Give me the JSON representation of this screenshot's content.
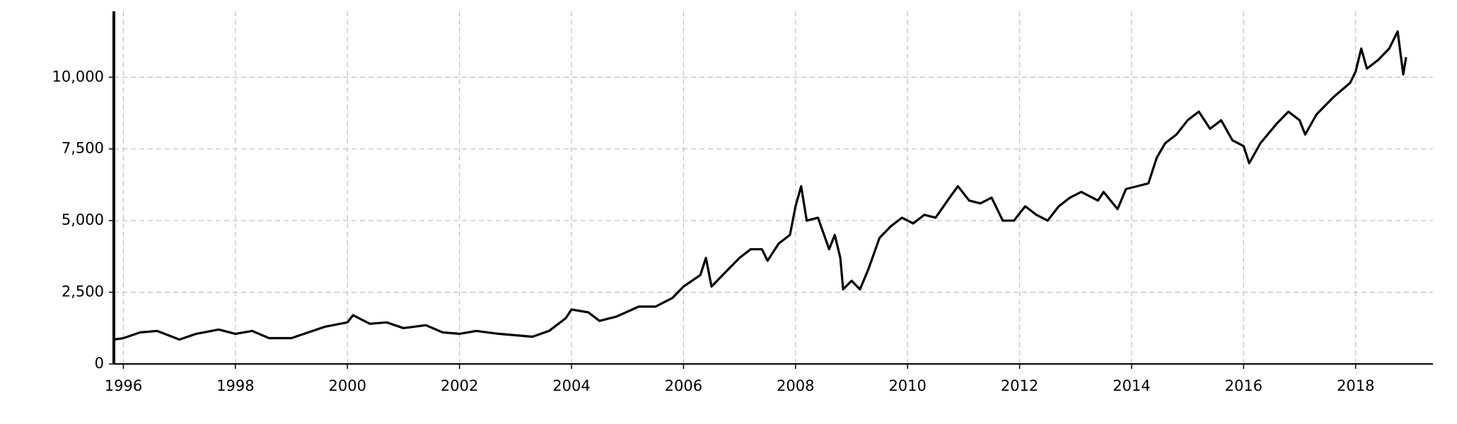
{
  "chart_data": {
    "type": "line",
    "color": "#000000",
    "grid": true,
    "xlim": [
      1995.83,
      2019.38
    ],
    "xticks": [
      1996,
      1998,
      2000,
      2002,
      2004,
      2006,
      2008,
      2010,
      2012,
      2014,
      2016,
      2018
    ],
    "ylim": [
      0,
      12300
    ],
    "yticks": [
      0,
      {
        "value": 2500,
        "label": "2,500"
      },
      {
        "value": 5000,
        "label": "5,000"
      },
      {
        "value": 7500,
        "label": "7,500"
      },
      {
        "value": 10000,
        "label": "10,000"
      }
    ],
    "x": [
      1995.83,
      1996.0,
      1996.3,
      1996.6,
      1997.0,
      1997.3,
      1997.7,
      1998.0,
      1998.3,
      1998.6,
      1999.0,
      1999.3,
      1999.6,
      2000.0,
      2000.1,
      2000.4,
      2000.7,
      2001.0,
      2001.4,
      2001.7,
      2002.0,
      2002.3,
      2002.7,
      2003.0,
      2003.3,
      2003.6,
      2003.9,
      2004.0,
      2004.3,
      2004.5,
      2004.8,
      2005.2,
      2005.5,
      2005.8,
      2006.0,
      2006.3,
      2006.4,
      2006.5,
      2006.8,
      2007.0,
      2007.2,
      2007.4,
      2007.5,
      2007.7,
      2007.9,
      2008.0,
      2008.1,
      2008.2,
      2008.4,
      2008.6,
      2008.7,
      2008.8,
      2008.85,
      2009.0,
      2009.15,
      2009.3,
      2009.5,
      2009.7,
      2009.9,
      2010.1,
      2010.3,
      2010.5,
      2010.75,
      2010.9,
      2011.1,
      2011.3,
      2011.5,
      2011.7,
      2011.9,
      2012.1,
      2012.3,
      2012.5,
      2012.7,
      2012.9,
      2013.1,
      2013.4,
      2013.5,
      2013.75,
      2013.9,
      2014.1,
      2014.3,
      2014.45,
      2014.6,
      2014.8,
      2015.0,
      2015.2,
      2015.4,
      2015.6,
      2015.8,
      2016.0,
      2016.1,
      2016.3,
      2016.6,
      2016.8,
      2017.0,
      2017.1,
      2017.3,
      2017.6,
      2017.9,
      2018.0,
      2018.1,
      2018.2,
      2018.4,
      2018.6,
      2018.75,
      2018.85,
      2018.9
    ],
    "values": [
      850,
      900,
      1100,
      1150,
      850,
      1050,
      1200,
      1050,
      1150,
      900,
      900,
      1100,
      1300,
      1450,
      1700,
      1400,
      1450,
      1250,
      1350,
      1100,
      1050,
      1150,
      1050,
      1000,
      950,
      1150,
      1600,
      1900,
      1800,
      1500,
      1650,
      2000,
      2000,
      2300,
      2700,
      3100,
      3700,
      2700,
      3300,
      3700,
      4000,
      4000,
      3600,
      4200,
      4500,
      5500,
      6200,
      5000,
      5100,
      4000,
      4500,
      3700,
      2600,
      2900,
      2600,
      3300,
      4400,
      4800,
      5100,
      4900,
      5200,
      5100,
      5800,
      6200,
      5700,
      5600,
      5800,
      5000,
      5000,
      5500,
      5200,
      5000,
      5500,
      5800,
      6000,
      5700,
      6000,
      5400,
      6100,
      6200,
      6300,
      7200,
      7700,
      8000,
      8500,
      8800,
      8200,
      8500,
      7800,
      7600,
      7000,
      7700,
      8400,
      8800,
      8500,
      8000,
      8700,
      9300,
      9800,
      10200,
      11000,
      10300,
      10600,
      11000,
      11600,
      10100,
      10700
    ]
  }
}
